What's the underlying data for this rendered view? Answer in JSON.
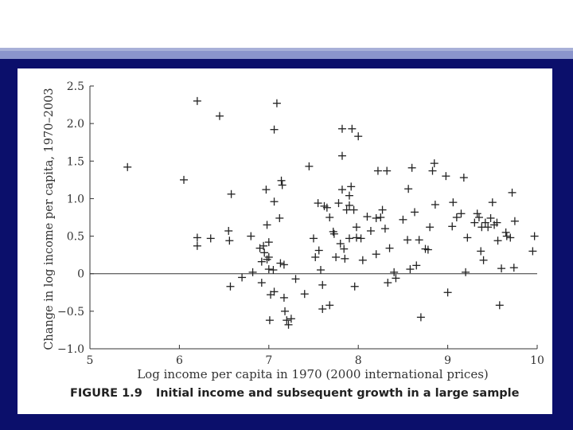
{
  "colors": {
    "frame": "#0b0f6b",
    "stripe": "#8a94cc",
    "ink": "#333333"
  },
  "caption": {
    "figure": "FIGURE 1.9",
    "text": "Initial income and subsequent growth in a large sample"
  },
  "chart_data": {
    "type": "scatter",
    "marker": "plus",
    "xlabel": "Log income per capita in 1970 (2000 international prices)",
    "ylabel": "Change in log income per capita, 1970–2003",
    "xlim": [
      5,
      10
    ],
    "ylim": [
      -1.0,
      2.5
    ],
    "xticks": [
      "5",
      "6",
      "7",
      "8",
      "9",
      "10"
    ],
    "yticks": [
      "2.5",
      "2.0",
      "1.5",
      "1.0",
      "0.5",
      "0",
      "−0.5",
      "−1.0"
    ],
    "zero_line": true,
    "points": [
      [
        5.42,
        1.42
      ],
      [
        6.05,
        1.25
      ],
      [
        6.2,
        2.3
      ],
      [
        6.2,
        0.48
      ],
      [
        6.2,
        0.37
      ],
      [
        6.35,
        0.47
      ],
      [
        6.45,
        2.1
      ],
      [
        6.55,
        0.57
      ],
      [
        6.56,
        0.44
      ],
      [
        6.57,
        -0.17
      ],
      [
        6.58,
        1.06
      ],
      [
        6.7,
        -0.05
      ],
      [
        6.8,
        0.5
      ],
      [
        6.82,
        0.02
      ],
      [
        6.9,
        0.34
      ],
      [
        6.92,
        -0.12
      ],
      [
        6.92,
        0.16
      ],
      [
        6.94,
        0.37
      ],
      [
        6.95,
        0.28
      ],
      [
        6.97,
        1.12
      ],
      [
        6.98,
        0.65
      ],
      [
        6.98,
        0.19
      ],
      [
        7.0,
        0.22
      ],
      [
        7.0,
        0.42
      ],
      [
        7.0,
        0.06
      ],
      [
        7.01,
        -0.62
      ],
      [
        7.02,
        -0.28
      ],
      [
        7.05,
        0.05
      ],
      [
        7.06,
        0.96
      ],
      [
        7.06,
        -0.24
      ],
      [
        7.06,
        1.92
      ],
      [
        7.09,
        2.27
      ],
      [
        7.12,
        0.74
      ],
      [
        7.13,
        0.14
      ],
      [
        7.14,
        1.24
      ],
      [
        7.15,
        1.18
      ],
      [
        7.17,
        0.12
      ],
      [
        7.17,
        -0.32
      ],
      [
        7.18,
        -0.5
      ],
      [
        7.2,
        -0.62
      ],
      [
        7.22,
        -0.68
      ],
      [
        7.25,
        -0.6
      ],
      [
        7.3,
        -0.07
      ],
      [
        7.4,
        -0.27
      ],
      [
        7.45,
        1.43
      ],
      [
        7.5,
        0.47
      ],
      [
        7.52,
        0.22
      ],
      [
        7.55,
        0.94
      ],
      [
        7.56,
        0.31
      ],
      [
        7.58,
        0.05
      ],
      [
        7.6,
        -0.15
      ],
      [
        7.6,
        -0.47
      ],
      [
        7.62,
        0.9
      ],
      [
        7.65,
        0.88
      ],
      [
        7.68,
        0.75
      ],
      [
        7.68,
        -0.42
      ],
      [
        7.72,
        0.56
      ],
      [
        7.73,
        0.53
      ],
      [
        7.75,
        0.22
      ],
      [
        7.78,
        0.94
      ],
      [
        7.8,
        0.4
      ],
      [
        7.82,
        1.57
      ],
      [
        7.82,
        1.93
      ],
      [
        7.82,
        1.12
      ],
      [
        7.84,
        0.33
      ],
      [
        7.85,
        0.2
      ],
      [
        7.87,
        0.85
      ],
      [
        7.9,
        1.04
      ],
      [
        7.9,
        0.91
      ],
      [
        7.9,
        0.47
      ],
      [
        7.92,
        1.16
      ],
      [
        7.93,
        1.93
      ],
      [
        7.95,
        0.85
      ],
      [
        7.96,
        -0.17
      ],
      [
        7.98,
        0.62
      ],
      [
        7.98,
        0.48
      ],
      [
        8.0,
        1.83
      ],
      [
        8.03,
        0.47
      ],
      [
        8.05,
        0.18
      ],
      [
        8.1,
        0.76
      ],
      [
        8.14,
        0.57
      ],
      [
        8.2,
        0.74
      ],
      [
        8.2,
        0.26
      ],
      [
        8.22,
        1.37
      ],
      [
        8.25,
        0.75
      ],
      [
        8.27,
        0.85
      ],
      [
        8.3,
        0.6
      ],
      [
        8.32,
        1.37
      ],
      [
        8.33,
        -0.12
      ],
      [
        8.35,
        0.34
      ],
      [
        8.4,
        0.02
      ],
      [
        8.42,
        -0.06
      ],
      [
        8.5,
        0.72
      ],
      [
        8.55,
        0.45
      ],
      [
        8.56,
        1.13
      ],
      [
        8.58,
        0.06
      ],
      [
        8.6,
        1.41
      ],
      [
        8.63,
        0.82
      ],
      [
        8.65,
        0.11
      ],
      [
        8.68,
        0.45
      ],
      [
        8.7,
        -0.58
      ],
      [
        8.75,
        0.33
      ],
      [
        8.78,
        0.32
      ],
      [
        8.8,
        0.62
      ],
      [
        8.83,
        1.37
      ],
      [
        8.85,
        1.47
      ],
      [
        8.86,
        0.92
      ],
      [
        8.98,
        1.3
      ],
      [
        9.0,
        -0.25
      ],
      [
        9.05,
        0.63
      ],
      [
        9.06,
        0.95
      ],
      [
        9.1,
        0.75
      ],
      [
        9.15,
        0.8
      ],
      [
        9.18,
        1.28
      ],
      [
        9.2,
        0.02
      ],
      [
        9.22,
        0.48
      ],
      [
        9.3,
        0.68
      ],
      [
        9.33,
        0.8
      ],
      [
        9.35,
        0.75
      ],
      [
        9.37,
        0.3
      ],
      [
        9.38,
        0.62
      ],
      [
        9.4,
        0.18
      ],
      [
        9.42,
        0.68
      ],
      [
        9.45,
        0.62
      ],
      [
        9.48,
        0.74
      ],
      [
        9.5,
        0.95
      ],
      [
        9.52,
        0.65
      ],
      [
        9.55,
        0.68
      ],
      [
        9.56,
        0.44
      ],
      [
        9.58,
        -0.42
      ],
      [
        9.6,
        0.07
      ],
      [
        9.65,
        0.55
      ],
      [
        9.66,
        0.5
      ],
      [
        9.7,
        0.48
      ],
      [
        9.72,
        1.08
      ],
      [
        9.74,
        0.08
      ],
      [
        9.75,
        0.7
      ],
      [
        9.95,
        0.3
      ],
      [
        9.97,
        0.5
      ]
    ]
  }
}
